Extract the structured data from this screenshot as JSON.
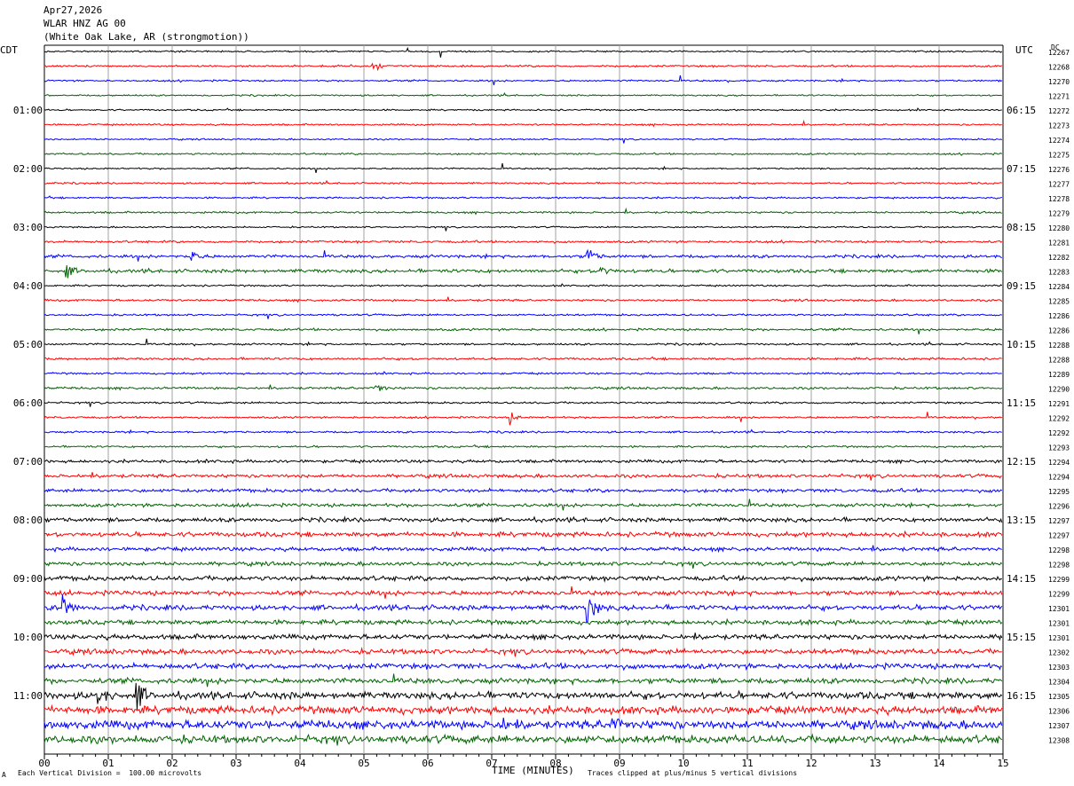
{
  "header": {
    "date": "Apr27,2026",
    "station": "WLAR HNZ AG 00",
    "location": "(White Oak Lake, AR (strongmotion))"
  },
  "left_axis_label": "CDT",
  "right_axis_label": "UTC",
  "dc_label": "DC",
  "footer": {
    "scale_note": "Each Vertical Division =  100.00 microvolts",
    "clip_note": "Traces clipped at plus/minus 5 vertical divisions",
    "corner_mark": "A"
  },
  "colors": {
    "black": "#000000",
    "red": "#ff0000",
    "blue": "#0000ff",
    "green": "#006400",
    "grid": "#a0a0a0"
  },
  "chart_data": {
    "type": "line",
    "title": "",
    "xlabel": "TIME (MINUTES)",
    "xlim": [
      0,
      15
    ],
    "x_ticks": [
      "00",
      "01",
      "02",
      "03",
      "04",
      "05",
      "06",
      "07",
      "08",
      "09",
      "10",
      "11",
      "12",
      "13",
      "14",
      "15"
    ],
    "trace_color_cycle": [
      "black",
      "red",
      "blue",
      "green"
    ],
    "left_hour_labels": [
      "01:00",
      "02:00",
      "03:00",
      "04:00",
      "05:00",
      "06:00",
      "07:00",
      "08:00",
      "09:00",
      "10:00",
      "11:00"
    ],
    "right_hour_labels": [
      "06:15",
      "07:15",
      "08:15",
      "09:15",
      "10:15",
      "11:15",
      "12:15",
      "13:15",
      "14:15",
      "15:15",
      "16:15"
    ],
    "dc_offsets": [
      "12267",
      "12268",
      "12270",
      "12271",
      "12272",
      "12273",
      "12274",
      "12275",
      "12276",
      "12277",
      "12278",
      "12279",
      "12280",
      "12281",
      "12282",
      "12283",
      "12284",
      "12285",
      "12286",
      "12286",
      "12288",
      "12288",
      "12289",
      "12290",
      "12291",
      "12292",
      "12292",
      "12293",
      "12294",
      "12294",
      "12295",
      "12296",
      "12297",
      "12297",
      "12298",
      "12298",
      "12299",
      "12299",
      "12301",
      "12301",
      "12301",
      "12302",
      "12303",
      "12304",
      "12305",
      "12306",
      "12307",
      "12308"
    ],
    "noise_level": [
      0.4,
      0.5,
      0.45,
      0.4,
      0.4,
      0.45,
      0.4,
      0.45,
      0.4,
      0.45,
      0.45,
      0.5,
      0.4,
      0.6,
      0.8,
      0.9,
      0.45,
      0.55,
      0.5,
      0.6,
      0.5,
      0.6,
      0.5,
      0.6,
      0.5,
      0.5,
      0.5,
      0.5,
      0.8,
      0.9,
      0.9,
      0.9,
      1.1,
      1.2,
      1.0,
      1.0,
      1.2,
      1.2,
      1.3,
      1.2,
      1.3,
      1.3,
      1.4,
      1.4,
      1.8,
      2.0,
      2.2,
      2.0
    ],
    "events": [
      {
        "trace": 1,
        "minute": 5.15,
        "amplitude": 4
      },
      {
        "trace": 14,
        "minute": 8.5,
        "amplitude": 6
      },
      {
        "trace": 14,
        "minute": 2.3,
        "amplitude": 4
      },
      {
        "trace": 15,
        "minute": 8.7,
        "amplitude": 5
      },
      {
        "trace": 15,
        "minute": 0.35,
        "amplitude": 4
      },
      {
        "trace": 23,
        "minute": 5.2,
        "amplitude": 4
      },
      {
        "trace": 25,
        "minute": 7.3,
        "amplitude": 3
      },
      {
        "trace": 38,
        "minute": 8.5,
        "amplitude": 14
      },
      {
        "trace": 38,
        "minute": 0.3,
        "amplitude": 10
      },
      {
        "trace": 44,
        "minute": 0.85,
        "amplitude": 6
      },
      {
        "trace": 44,
        "minute": 1.45,
        "amplitude": 9
      },
      {
        "trace": 46,
        "minute": 7.1,
        "amplitude": 6
      },
      {
        "trace": 46,
        "minute": 8.9,
        "amplitude": 5
      }
    ]
  }
}
